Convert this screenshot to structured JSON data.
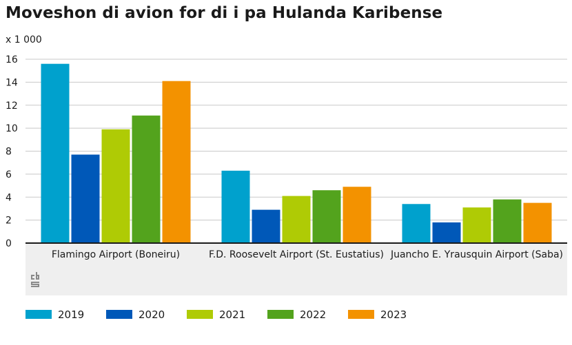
{
  "title": "Moveshon di avion for di i pa Hulanda Karibense",
  "chart_data": {
    "type": "bar",
    "title": "Moveshon di avion for di i pa Hulanda Karibense",
    "unit_label": "x 1 000",
    "categories": [
      "Flamingo Airport (Boneiru)",
      "F.D. Roosevelt Airport (St. Eustatius)",
      "Juancho E. Yrausquin Airport (Saba)"
    ],
    "series": [
      {
        "name": "2019",
        "color": "#00a1cd",
        "values": [
          15.6,
          6.3,
          3.4
        ]
      },
      {
        "name": "2020",
        "color": "#0058b8",
        "values": [
          7.7,
          2.9,
          1.8
        ]
      },
      {
        "name": "2021",
        "color": "#afcb05",
        "values": [
          9.9,
          4.1,
          3.1
        ]
      },
      {
        "name": "2022",
        "color": "#53a31d",
        "values": [
          11.1,
          4.6,
          3.8
        ]
      },
      {
        "name": "2023",
        "color": "#f39200",
        "values": [
          14.1,
          4.9,
          3.5
        ]
      }
    ],
    "ylim": [
      0,
      16
    ],
    "yticks": [
      "0",
      "2",
      "4",
      "6",
      "8",
      "10",
      "12",
      "14",
      "16"
    ],
    "grid": true,
    "legend_position": "bottom"
  },
  "logo_text": "cbs",
  "colors": {
    "grid": "#c8c8c8",
    "axis": "#1a1a1a",
    "category_band": "#efefef",
    "logo": "#8a8a8a"
  }
}
